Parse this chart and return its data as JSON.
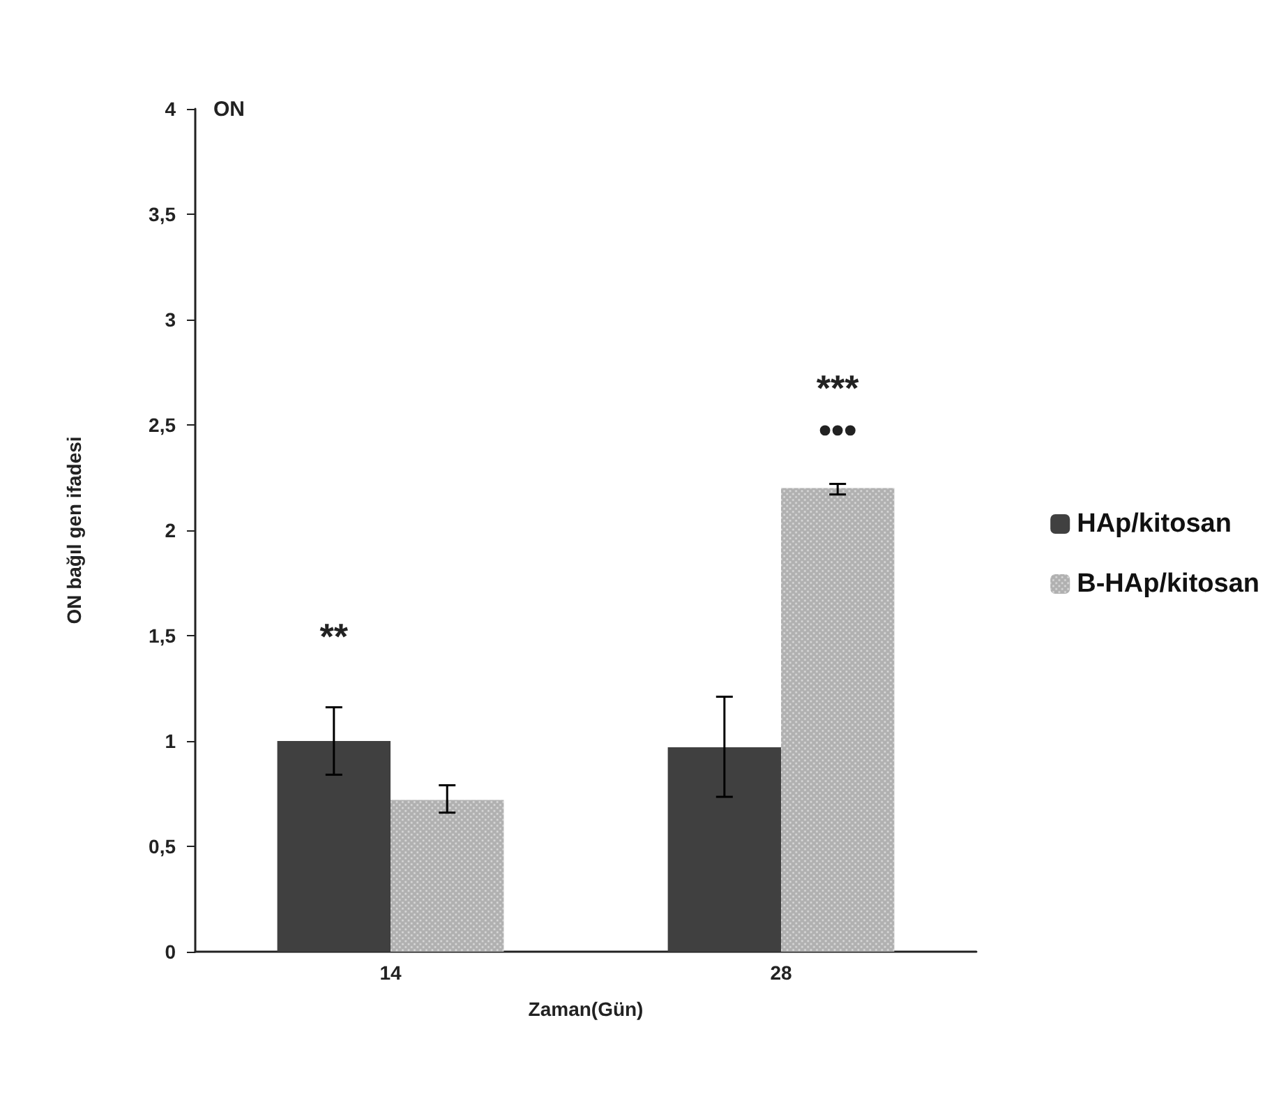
{
  "chart_data": {
    "type": "bar",
    "title": "ON",
    "xlabel": "Zaman(Gün)",
    "ylabel": "ON bağıl gen ifadesi",
    "categories": [
      "14",
      "28"
    ],
    "series": [
      {
        "name": "HAp/kitosan",
        "color": "#404040",
        "values": [
          1.0,
          0.97
        ],
        "errors": [
          [
            0.84,
            1.16
          ],
          [
            0.735,
            1.21
          ]
        ]
      },
      {
        "name": "B-HAp/kitosan",
        "color": "#b0b0b0",
        "values": [
          0.72,
          2.2
        ],
        "errors": [
          [
            0.66,
            0.79
          ],
          [
            2.17,
            2.22
          ]
        ]
      }
    ],
    "ylim": [
      0,
      4
    ],
    "yticks": [
      0,
      {
        "value": 0.5,
        "label": "0,5"
      },
      1,
      {
        "value": 1.5,
        "label": "1,5"
      },
      2,
      {
        "value": 2.5,
        "label": "2,5"
      },
      3,
      {
        "value": 3.5,
        "label": "3,5"
      },
      4
    ],
    "grid": false,
    "legend": "right",
    "annotations": [
      "**",
      "***",
      "•••"
    ]
  }
}
